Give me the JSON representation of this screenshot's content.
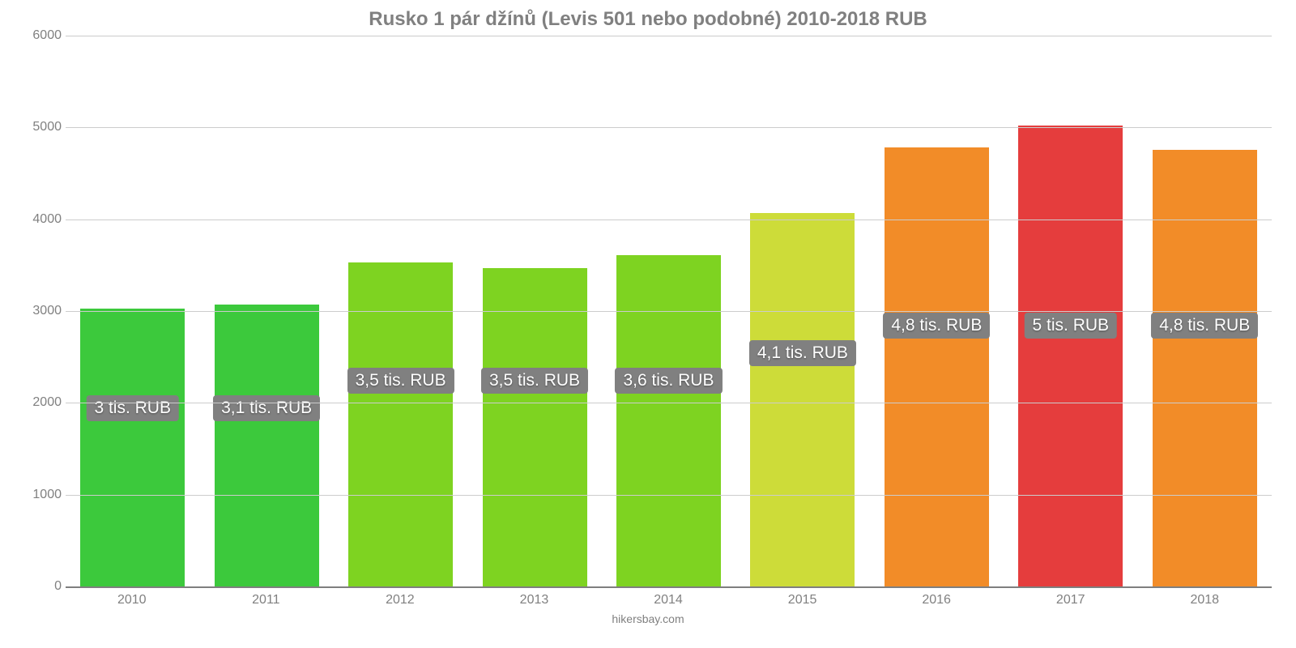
{
  "chart": {
    "type": "bar",
    "title": "Rusko 1 pár džínů (Levis 501 nebo podobné) 2010-2018 RUB",
    "title_fontsize": 24,
    "title_color": "#808080",
    "footer": "hikersbay.com",
    "footer_fontsize": 14,
    "footer_color": "#808080",
    "background_color": "#ffffff",
    "grid_color": "#cccccc",
    "baseline_color": "#7f7f7f",
    "axis_label_color": "#808080",
    "axis_label_fontsize": 16,
    "bar_width_pct": 78,
    "ylim": [
      0,
      6000
    ],
    "ytick_step": 1000,
    "yticks": [
      "0",
      "1000",
      "2000",
      "3000",
      "4000",
      "5000",
      "6000"
    ],
    "categories": [
      "2010",
      "2011",
      "2012",
      "2013",
      "2014",
      "2015",
      "2016",
      "2017",
      "2018"
    ],
    "values": [
      3030,
      3070,
      3530,
      3470,
      3610,
      4070,
      4780,
      5020,
      4760
    ],
    "bar_colors": [
      "#3cc93c",
      "#3cc93c",
      "#7ed321",
      "#7ed321",
      "#7ed321",
      "#cddc39",
      "#f28c28",
      "#e53d3d",
      "#f28c28"
    ],
    "value_labels": [
      "3 tis. RUB",
      "3,1 tis. RUB",
      "3,5 tis. RUB",
      "3,5 tis. RUB",
      "3,6 tis. RUB",
      "4,1 tis. RUB",
      "4,8 tis. RUB",
      "5 tis. RUB",
      "4,8 tis. RUB"
    ],
    "label_box_bg": "#808080",
    "label_box_fontsize": 21,
    "label_y_from_bottom_pct": [
      30,
      30,
      35,
      35,
      35,
      40,
      45,
      45,
      45
    ]
  }
}
